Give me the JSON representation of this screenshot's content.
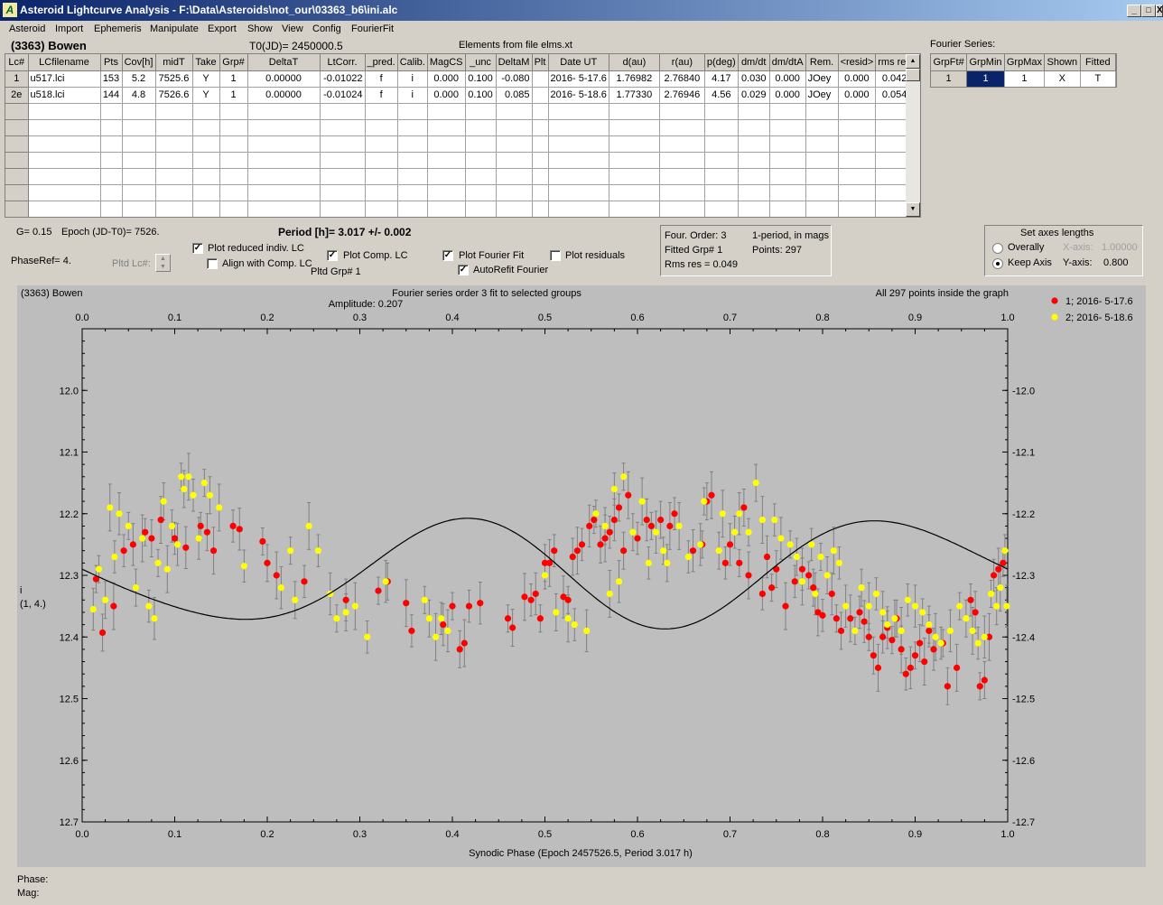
{
  "window": {
    "title": "Asteroid Lightcurve Analysis - F:\\Data\\Asteroids\\not_our\\03363_b6\\ini.alc",
    "min": "_",
    "max": "□",
    "close": "X"
  },
  "menu": [
    "Asteroid",
    "Import",
    "Ephemeris",
    "Manipulate",
    "Export",
    "Show",
    "View",
    "Config",
    "FourierFit"
  ],
  "header": {
    "asteroid": "(3363) Bowen",
    "t0": "T0(JD)= 2450000.5",
    "elements": "Elements from file elms.xt",
    "fourier_label": "Fourier Series:"
  },
  "lc_table": {
    "columns": [
      "Lc#",
      "LCfilename",
      "Pts",
      "Cov[h]",
      "midT",
      "Take",
      "Grp#",
      "DeltaT",
      "LtCorr.",
      "_pred.",
      "Calib.",
      "MagCS",
      "_unc",
      "DeltaM",
      "Plt",
      "Date UT",
      "d(au)",
      "r(au)",
      "p(deg)",
      "dm/dt",
      "dm/dtA",
      "Rem.",
      "<resid>",
      "rms res"
    ],
    "rows": [
      [
        "1",
        "u517.lci",
        "153",
        "5.2",
        "7525.6",
        "Y",
        "1",
        "0.00000",
        "-0.01022",
        "f",
        "i",
        "0.000",
        "0.100",
        "-0.080",
        "",
        "2016- 5-17.6",
        "1.76982",
        "2.76840",
        "4.17",
        "0.030",
        "0.000",
        "JOey",
        "0.000",
        "0.042"
      ],
      [
        "2e",
        "u518.lci",
        "144",
        "4.8",
        "7526.6",
        "Y",
        "1",
        "0.00000",
        "-0.01024",
        "f",
        "i",
        "0.000",
        "0.100",
        "0.085",
        "",
        "2016- 5-18.6",
        "1.77330",
        "2.76946",
        "4.56",
        "0.029",
        "0.000",
        "JOey",
        "0.000",
        "0.054"
      ]
    ]
  },
  "fourier_table": {
    "columns": [
      "GrpFt#",
      "GrpMin",
      "GrpMax",
      "Shown",
      "Fitted"
    ],
    "rows": [
      [
        "1",
        "1",
        "1",
        "X",
        "T"
      ]
    ]
  },
  "controls": {
    "g": "G= 0.15",
    "epoch": "Epoch (JD-T0)= 7526.",
    "period": "Period [h]= 3.017 +/- 0.002",
    "phaseref": "PhaseRef= 4.",
    "pltd_lc": "Pltd Lc#:",
    "plot_reduced": "Plot reduced indiv. LC",
    "align": "Align with Comp. LC",
    "plot_comp": "Plot Comp. LC",
    "pltd_grp": "Pltd Grp#  1",
    "plot_fourier": "Plot Fourier Fit",
    "autorefit": "AutoRefit Fourier",
    "plot_resid": "Plot residuals",
    "plot_reduced_checked": true,
    "align_checked": false,
    "plot_comp_checked": true,
    "plot_fourier_checked": true,
    "autorefit_checked": true,
    "plot_resid_checked": false
  },
  "fit_info": {
    "order": "Four. Order:  3",
    "fitted": "Fitted Grp# 1",
    "rms": "Rms res     = 0.049",
    "mode": "1-period, in mags",
    "points": "Points: 297"
  },
  "axes_box": {
    "title": "Set axes lengths",
    "overally": "Overally",
    "keep": "Keep Axis",
    "xaxis_label": "X-axis:",
    "xaxis_val": "1.00000",
    "yaxis_label": "Y-axis:",
    "yaxis_val": "0.800",
    "selected": "keep"
  },
  "status": {
    "phase": "Phase:",
    "mag": "Mag:"
  },
  "chart_data": {
    "type": "scatter",
    "title": "(3363) Bowen",
    "subtitle": "Fourier series order 3 fit to selected groups",
    "amplitude": "Amplitude: 0.207",
    "note": "All 297 points inside the graph",
    "xlabel": "Synodic Phase (Epoch 2457526.5, Period 3.017 h)",
    "ylabel": "i",
    "ylabel2": "(1, 4.)",
    "xlim": [
      0,
      1
    ],
    "ylim": [
      12.7,
      11.9
    ],
    "xticks": [
      "0.0",
      "0.1",
      "0.2",
      "0.3",
      "0.4",
      "0.5",
      "0.6",
      "0.7",
      "0.8",
      "0.9",
      "1.0"
    ],
    "yticks": [
      "12.0",
      "12.1",
      "12.2",
      "12.3",
      "12.4",
      "12.5",
      "12.6",
      "12.7"
    ],
    "legend_position": "top-right",
    "fourier_fit": {
      "mean": 12.296,
      "a1": 0.0,
      "b1": 0.012,
      "a2": -0.018,
      "b2": 0.078,
      "a3": 0.012,
      "b3": -0.018
    },
    "series": [
      {
        "name": "1; 2016- 5-17.6",
        "color": "#ff0000",
        "points": [
          [
            0.015,
            12.306
          ],
          [
            0.022,
            12.393
          ],
          [
            0.034,
            12.35
          ],
          [
            0.045,
            12.26
          ],
          [
            0.055,
            12.25
          ],
          [
            0.068,
            12.23
          ],
          [
            0.075,
            12.24
          ],
          [
            0.085,
            12.21
          ],
          [
            0.1,
            12.24
          ],
          [
            0.112,
            12.255
          ],
          [
            0.128,
            12.22
          ],
          [
            0.135,
            12.23
          ],
          [
            0.142,
            12.26
          ],
          [
            0.163,
            12.22
          ],
          [
            0.17,
            12.225
          ],
          [
            0.195,
            12.245
          ],
          [
            0.2,
            12.28
          ],
          [
            0.21,
            12.3
          ],
          [
            0.24,
            12.31
          ],
          [
            0.285,
            12.34
          ],
          [
            0.32,
            12.325
          ],
          [
            0.33,
            12.31
          ],
          [
            0.35,
            12.345
          ],
          [
            0.356,
            12.39
          ],
          [
            0.39,
            12.38
          ],
          [
            0.4,
            12.35
          ],
          [
            0.408,
            12.42
          ],
          [
            0.413,
            12.41
          ],
          [
            0.418,
            12.35
          ],
          [
            0.43,
            12.345
          ],
          [
            0.46,
            12.37
          ],
          [
            0.465,
            12.385
          ],
          [
            0.478,
            12.335
          ],
          [
            0.485,
            12.34
          ],
          [
            0.49,
            12.33
          ],
          [
            0.495,
            12.37
          ],
          [
            0.5,
            12.28
          ],
          [
            0.505,
            12.28
          ],
          [
            0.51,
            12.26
          ],
          [
            0.52,
            12.335
          ],
          [
            0.525,
            12.34
          ],
          [
            0.53,
            12.27
          ],
          [
            0.535,
            12.26
          ],
          [
            0.54,
            12.25
          ],
          [
            0.548,
            12.22
          ],
          [
            0.553,
            12.21
          ],
          [
            0.56,
            12.25
          ],
          [
            0.565,
            12.24
          ],
          [
            0.57,
            12.23
          ],
          [
            0.575,
            12.21
          ],
          [
            0.58,
            12.19
          ],
          [
            0.585,
            12.26
          ],
          [
            0.59,
            12.17
          ],
          [
            0.6,
            12.24
          ],
          [
            0.61,
            12.21
          ],
          [
            0.615,
            12.22
          ],
          [
            0.625,
            12.21
          ],
          [
            0.635,
            12.22
          ],
          [
            0.64,
            12.2
          ],
          [
            0.66,
            12.26
          ],
          [
            0.67,
            12.25
          ],
          [
            0.675,
            12.18
          ],
          [
            0.68,
            12.17
          ],
          [
            0.695,
            12.28
          ],
          [
            0.7,
            12.25
          ],
          [
            0.71,
            12.28
          ],
          [
            0.715,
            12.19
          ],
          [
            0.72,
            12.3
          ],
          [
            0.735,
            12.33
          ],
          [
            0.74,
            12.27
          ],
          [
            0.745,
            12.32
          ],
          [
            0.75,
            12.29
          ],
          [
            0.76,
            12.35
          ],
          [
            0.77,
            12.31
          ],
          [
            0.778,
            12.29
          ],
          [
            0.785,
            12.3
          ],
          [
            0.79,
            12.32
          ],
          [
            0.795,
            12.36
          ],
          [
            0.8,
            12.365
          ],
          [
            0.81,
            12.33
          ],
          [
            0.815,
            12.37
          ],
          [
            0.82,
            12.39
          ],
          [
            0.83,
            12.37
          ],
          [
            0.84,
            12.36
          ],
          [
            0.845,
            12.375
          ],
          [
            0.85,
            12.4
          ],
          [
            0.855,
            12.43
          ],
          [
            0.86,
            12.45
          ],
          [
            0.865,
            12.4
          ],
          [
            0.87,
            12.385
          ],
          [
            0.875,
            12.405
          ],
          [
            0.88,
            12.37
          ],
          [
            0.885,
            12.42
          ],
          [
            0.89,
            12.46
          ],
          [
            0.895,
            12.45
          ],
          [
            0.9,
            12.43
          ],
          [
            0.905,
            12.41
          ],
          [
            0.91,
            12.44
          ],
          [
            0.915,
            12.39
          ],
          [
            0.92,
            12.42
          ],
          [
            0.93,
            12.41
          ],
          [
            0.935,
            12.48
          ],
          [
            0.945,
            12.45
          ],
          [
            0.96,
            12.34
          ],
          [
            0.965,
            12.36
          ],
          [
            0.97,
            12.48
          ],
          [
            0.975,
            12.47
          ],
          [
            0.98,
            12.4
          ],
          [
            0.985,
            12.3
          ],
          [
            0.99,
            12.29
          ],
          [
            0.995,
            12.28
          ]
        ]
      },
      {
        "name": "2; 2016- 5-18.6",
        "color": "#ffff00",
        "points": [
          [
            0.012,
            12.355
          ],
          [
            0.018,
            12.29
          ],
          [
            0.025,
            12.34
          ],
          [
            0.03,
            12.19
          ],
          [
            0.035,
            12.27
          ],
          [
            0.04,
            12.2
          ],
          [
            0.05,
            12.22
          ],
          [
            0.058,
            12.32
          ],
          [
            0.065,
            12.24
          ],
          [
            0.072,
            12.35
          ],
          [
            0.078,
            12.37
          ],
          [
            0.082,
            12.28
          ],
          [
            0.088,
            12.18
          ],
          [
            0.092,
            12.29
          ],
          [
            0.097,
            12.22
          ],
          [
            0.103,
            12.25
          ],
          [
            0.107,
            12.14
          ],
          [
            0.11,
            12.16
          ],
          [
            0.115,
            12.14
          ],
          [
            0.12,
            12.17
          ],
          [
            0.126,
            12.24
          ],
          [
            0.132,
            12.15
          ],
          [
            0.138,
            12.17
          ],
          [
            0.148,
            12.19
          ],
          [
            0.175,
            12.285
          ],
          [
            0.215,
            12.32
          ],
          [
            0.225,
            12.26
          ],
          [
            0.23,
            12.34
          ],
          [
            0.245,
            12.22
          ],
          [
            0.255,
            12.26
          ],
          [
            0.268,
            12.33
          ],
          [
            0.275,
            12.37
          ],
          [
            0.285,
            12.36
          ],
          [
            0.295,
            12.35
          ],
          [
            0.308,
            12.4
          ],
          [
            0.328,
            12.31
          ],
          [
            0.37,
            12.34
          ],
          [
            0.375,
            12.37
          ],
          [
            0.382,
            12.4
          ],
          [
            0.388,
            12.37
          ],
          [
            0.395,
            12.39
          ],
          [
            0.5,
            12.3
          ],
          [
            0.512,
            12.36
          ],
          [
            0.525,
            12.37
          ],
          [
            0.532,
            12.38
          ],
          [
            0.545,
            12.39
          ],
          [
            0.555,
            12.2
          ],
          [
            0.565,
            12.22
          ],
          [
            0.57,
            12.33
          ],
          [
            0.575,
            12.16
          ],
          [
            0.58,
            12.31
          ],
          [
            0.585,
            12.14
          ],
          [
            0.595,
            12.23
          ],
          [
            0.605,
            12.18
          ],
          [
            0.612,
            12.28
          ],
          [
            0.62,
            12.23
          ],
          [
            0.628,
            12.26
          ],
          [
            0.632,
            12.28
          ],
          [
            0.645,
            12.22
          ],
          [
            0.655,
            12.27
          ],
          [
            0.668,
            12.25
          ],
          [
            0.672,
            12.18
          ],
          [
            0.688,
            12.26
          ],
          [
            0.692,
            12.2
          ],
          [
            0.705,
            12.23
          ],
          [
            0.71,
            12.2
          ],
          [
            0.72,
            12.23
          ],
          [
            0.728,
            12.15
          ],
          [
            0.735,
            12.21
          ],
          [
            0.748,
            12.21
          ],
          [
            0.755,
            12.24
          ],
          [
            0.765,
            12.25
          ],
          [
            0.772,
            12.27
          ],
          [
            0.778,
            12.31
          ],
          [
            0.788,
            12.25
          ],
          [
            0.792,
            12.33
          ],
          [
            0.798,
            12.27
          ],
          [
            0.805,
            12.3
          ],
          [
            0.812,
            12.26
          ],
          [
            0.818,
            12.28
          ],
          [
            0.825,
            12.35
          ],
          [
            0.835,
            12.39
          ],
          [
            0.842,
            12.32
          ],
          [
            0.85,
            12.35
          ],
          [
            0.858,
            12.33
          ],
          [
            0.865,
            12.36
          ],
          [
            0.87,
            12.38
          ],
          [
            0.878,
            12.37
          ],
          [
            0.885,
            12.39
          ],
          [
            0.892,
            12.34
          ],
          [
            0.9,
            12.35
          ],
          [
            0.908,
            12.36
          ],
          [
            0.915,
            12.38
          ],
          [
            0.922,
            12.4
          ],
          [
            0.928,
            12.41
          ],
          [
            0.938,
            12.39
          ],
          [
            0.948,
            12.35
          ],
          [
            0.955,
            12.37
          ],
          [
            0.962,
            12.39
          ],
          [
            0.968,
            12.41
          ],
          [
            0.975,
            12.4
          ],
          [
            0.982,
            12.33
          ],
          [
            0.988,
            12.35
          ],
          [
            0.992,
            12.32
          ],
          [
            0.997,
            12.26
          ],
          [
            0.999,
            12.35
          ]
        ]
      }
    ]
  }
}
